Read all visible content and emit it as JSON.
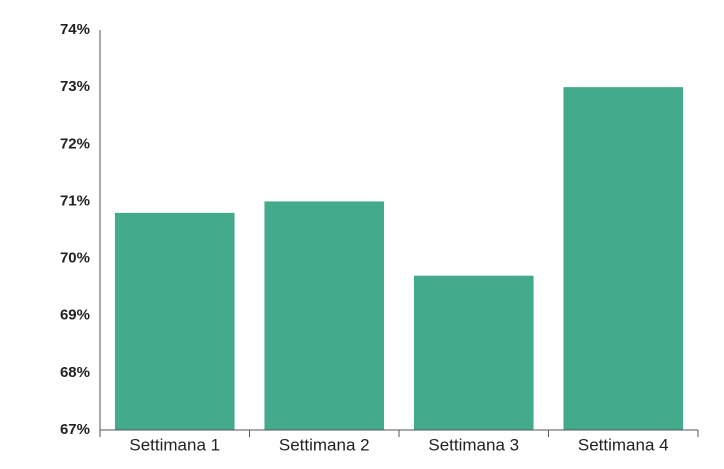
{
  "chart_data": {
    "type": "bar",
    "categories": [
      "Settimana 1",
      "Settimana 2",
      "Settimana 3",
      "Settimana 4"
    ],
    "values": [
      70.8,
      71.0,
      69.7,
      73.0
    ],
    "color": "#43aa8b",
    "ylim": [
      67,
      74
    ],
    "yticks": [
      {
        "value": 67,
        "label": "67%"
      },
      {
        "value": 68,
        "label": "68%"
      },
      {
        "value": 69,
        "label": "69%"
      },
      {
        "value": 70,
        "label": "70%"
      },
      {
        "value": 71,
        "label": "71%"
      },
      {
        "value": 72,
        "label": "72%"
      },
      {
        "value": 73,
        "label": "73%"
      },
      {
        "value": 74,
        "label": "74%"
      }
    ],
    "grid": false
  }
}
